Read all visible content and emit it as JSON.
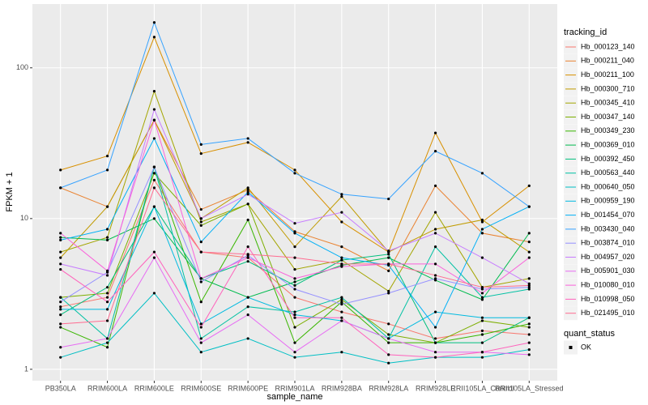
{
  "chart_data": {
    "type": "line",
    "log_y": true,
    "grid": true,
    "x_label": "sample_name",
    "y_label": "FPKM + 1",
    "categories": [
      "PB350LA",
      "RRIM600LA",
      "RRIM600LE",
      "RRIM600SE",
      "RRIM600PE",
      "RRIM901LA",
      "RRIM928BA",
      "RRIM928LA",
      "RRIM928LE",
      "RRII105LA_Control",
      "RRII105LA_Stressed"
    ],
    "ylim": [
      0.84,
      265
    ],
    "yticks": [
      1,
      10,
      100
    ],
    "legend_title": "tracking_id",
    "legend_position": "right",
    "shape_legend": {
      "title": "quant_status",
      "labels": [
        "OK"
      ]
    },
    "series": [
      {
        "name": "Hb_000123_140",
        "color": "#F8766D",
        "values": [
          2.6,
          3.0,
          18,
          6,
          5.5,
          3.0,
          2.4,
          2.0,
          1.6,
          1.8,
          1.7
        ]
      },
      {
        "name": "Hb_000211_040",
        "color": "#EA8331",
        "values": [
          16,
          12,
          45,
          11.5,
          15.5,
          8.2,
          6.5,
          4.5,
          16.5,
          8,
          7
        ]
      },
      {
        "name": "Hb_000211_100",
        "color": "#D89000",
        "values": [
          21,
          26,
          160,
          27,
          32,
          21,
          9.5,
          6,
          37,
          9.5,
          16.5
        ]
      },
      {
        "name": "Hb_000300_710",
        "color": "#C09B00",
        "values": [
          5.5,
          12,
          45,
          10,
          16,
          6.5,
          14,
          6,
          8.5,
          9.8,
          6
        ]
      },
      {
        "name": "Hb_000345_410",
        "color": "#A3A500",
        "values": [
          6,
          7.5,
          70,
          9.5,
          12.5,
          4.6,
          5.3,
          3.3,
          11,
          3.5,
          4
        ]
      },
      {
        "name": "Hb_000347_140",
        "color": "#7CAE00",
        "values": [
          3,
          3.2,
          20,
          9,
          12.5,
          1.9,
          2.9,
          1.7,
          1.5,
          2.1,
          1.9
        ]
      },
      {
        "name": "Hb_000349_230",
        "color": "#39B600",
        "values": [
          1.9,
          1.4,
          22,
          2.8,
          9.8,
          1.5,
          2.8,
          1.5,
          1.5,
          1.7,
          2.0
        ]
      },
      {
        "name": "Hb_000369_010",
        "color": "#00BB4E",
        "values": [
          7.5,
          7.2,
          10,
          4,
          3,
          3.8,
          4.9,
          5.5,
          3.9,
          2.9,
          8
        ]
      },
      {
        "name": "Hb_000392_450",
        "color": "#00BF7D",
        "values": [
          2.3,
          3.5,
          12,
          4,
          5.2,
          3.6,
          5.3,
          5.8,
          1.5,
          1.5,
          2.2
        ]
      },
      {
        "name": "Hb_000563_440",
        "color": "#00C1A3",
        "values": [
          3,
          1.6,
          22,
          1.6,
          2.6,
          2.4,
          3.0,
          1.6,
          6.5,
          3,
          3.4
        ]
      },
      {
        "name": "Hb_000640_050",
        "color": "#00BFC4",
        "values": [
          1.2,
          1.5,
          3.2,
          1.3,
          1.6,
          1.2,
          1.3,
          1.1,
          1.2,
          1.2,
          1.35
        ]
      },
      {
        "name": "Hb_000959_190",
        "color": "#00BAE0",
        "values": [
          2.5,
          2.5,
          12,
          2.0,
          3.0,
          2.3,
          2.1,
          1.6,
          2.4,
          2.2,
          2.2
        ]
      },
      {
        "name": "Hb_001454_070",
        "color": "#00B0F6",
        "values": [
          7.2,
          8.5,
          34,
          7,
          15,
          8,
          5.5,
          4.9,
          1.9,
          8.5,
          12
        ]
      },
      {
        "name": "Hb_003430_040",
        "color": "#35A2FF",
        "values": [
          16,
          21,
          200,
          31,
          34,
          20,
          14.5,
          13.5,
          28,
          20,
          12
        ]
      },
      {
        "name": "Hb_003874_010",
        "color": "#9590FF",
        "values": [
          2.8,
          4.4,
          22,
          3.8,
          5.7,
          3.4,
          2.7,
          3.2,
          4.0,
          3.4,
          3.5
        ]
      },
      {
        "name": "Hb_004957_020",
        "color": "#C77CFF",
        "values": [
          5,
          4.2,
          53,
          10,
          14.5,
          9.3,
          11,
          6.1,
          8,
          5.5,
          3.7
        ]
      },
      {
        "name": "Hb_005901_030",
        "color": "#E76BF3",
        "values": [
          1.4,
          1.6,
          5.5,
          1.5,
          2.3,
          1.3,
          2.1,
          1.6,
          1.3,
          1.3,
          1.25
        ]
      },
      {
        "name": "Hb_010080_010",
        "color": "#FA62DB",
        "values": [
          8,
          4.5,
          45,
          4,
          5.5,
          4,
          4.8,
          5,
          5,
          3.2,
          5.5
        ]
      },
      {
        "name": "Hb_010998_050",
        "color": "#FF62BC",
        "values": [
          4.6,
          2.8,
          6,
          1.9,
          6.5,
          2.2,
          2.2,
          1.25,
          1.2,
          1.3,
          1.5
        ]
      },
      {
        "name": "Hb_021495_010",
        "color": "#FF6C91",
        "values": [
          2.0,
          2.1,
          16,
          6,
          5.8,
          5.5,
          5.0,
          5.0,
          4.2,
          3.5,
          3.6
        ]
      }
    ]
  }
}
